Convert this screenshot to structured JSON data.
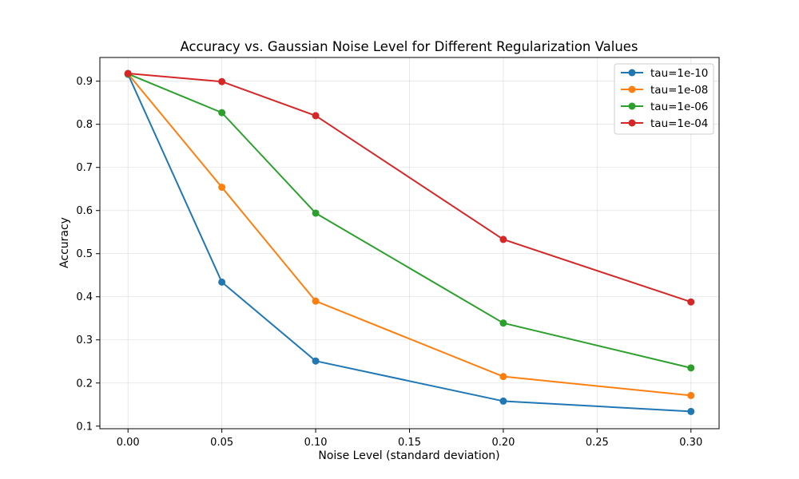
{
  "chart_data": {
    "type": "line",
    "title": "Accuracy vs. Gaussian Noise Level for Different Regularization Values",
    "xlabel": "Noise Level (standard deviation)",
    "ylabel": "Accuracy",
    "x": [
      0.0,
      0.05,
      0.1,
      0.2,
      0.3
    ],
    "xlim": [
      -0.015,
      0.315
    ],
    "ylim": [
      0.094,
      0.955
    ],
    "xticks": [
      0.0,
      0.05,
      0.1,
      0.15,
      0.2,
      0.25,
      0.3
    ],
    "xtick_labels": [
      "0.00",
      "0.05",
      "0.10",
      "0.15",
      "0.20",
      "0.25",
      "0.30"
    ],
    "yticks": [
      0.1,
      0.2,
      0.3,
      0.4,
      0.5,
      0.6,
      0.7,
      0.8,
      0.9
    ],
    "ytick_labels": [
      "0.1",
      "0.2",
      "0.3",
      "0.4",
      "0.5",
      "0.6",
      "0.7",
      "0.8",
      "0.9"
    ],
    "grid": true,
    "legend_position": "top-right",
    "series": [
      {
        "name": "tau=1e-10",
        "color": "#1f77b4",
        "values": [
          0.916,
          0.434,
          0.251,
          0.158,
          0.134
        ]
      },
      {
        "name": "tau=1e-08",
        "color": "#ff7f0e",
        "values": [
          0.917,
          0.654,
          0.39,
          0.215,
          0.171
        ]
      },
      {
        "name": "tau=1e-06",
        "color": "#2ca02c",
        "values": [
          0.917,
          0.827,
          0.594,
          0.339,
          0.235
        ]
      },
      {
        "name": "tau=1e-04",
        "color": "#d62728",
        "values": [
          0.918,
          0.899,
          0.82,
          0.533,
          0.388
        ]
      }
    ]
  }
}
